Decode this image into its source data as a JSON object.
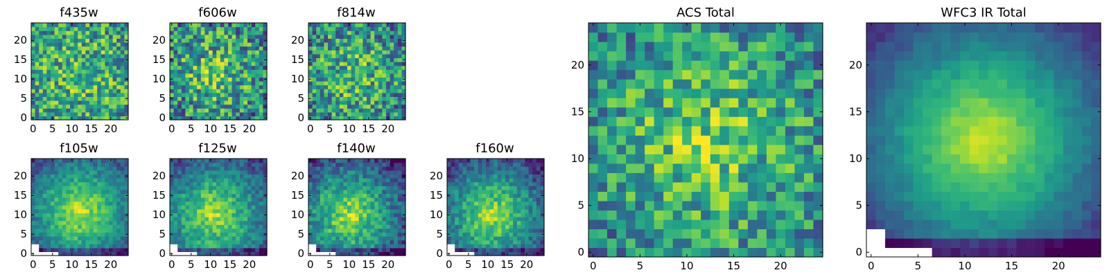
{
  "chart_data": [
    {
      "type": "heatmap",
      "title": "f435w",
      "shape": [
        25,
        25
      ],
      "xlim": [
        0,
        24
      ],
      "ylim": [
        0,
        24
      ],
      "xticks": [
        0,
        5,
        10,
        15,
        20
      ],
      "yticks": [
        0,
        5,
        10,
        15,
        20
      ],
      "value_range": [
        0,
        1
      ],
      "center": [
        12,
        12
      ],
      "peak": 0.68,
      "falloff": 0.1,
      "noise": 0.33,
      "mask": "none"
    },
    {
      "type": "heatmap",
      "title": "f606w",
      "shape": [
        25,
        25
      ],
      "xlim": [
        0,
        24
      ],
      "ylim": [
        0,
        24
      ],
      "xticks": [
        0,
        5,
        10,
        15,
        20
      ],
      "yticks": [
        0,
        5,
        10,
        15,
        20
      ],
      "value_range": [
        0,
        1
      ],
      "center": [
        11,
        12
      ],
      "peak": 0.72,
      "falloff": 0.22,
      "noise": 0.36,
      "mask": "none"
    },
    {
      "type": "heatmap",
      "title": "f814w",
      "shape": [
        25,
        25
      ],
      "xlim": [
        0,
        24
      ],
      "ylim": [
        0,
        24
      ],
      "xticks": [
        0,
        5,
        10,
        15,
        20
      ],
      "yticks": [
        0,
        5,
        10,
        15,
        20
      ],
      "value_range": [
        0,
        1
      ],
      "center": [
        11,
        11
      ],
      "peak": 0.72,
      "falloff": 0.22,
      "noise": 0.34,
      "mask": "none"
    },
    {
      "type": "heatmap",
      "title": "f105w",
      "shape": [
        25,
        25
      ],
      "xlim": [
        0,
        24
      ],
      "ylim": [
        0,
        24
      ],
      "xticks": [
        0,
        5,
        10,
        15,
        20
      ],
      "yticks": [
        0,
        5,
        10,
        15,
        20
      ],
      "value_range": [
        0,
        1
      ],
      "center": [
        12,
        11
      ],
      "peak": 0.93,
      "falloff": 0.5,
      "noise": 0.13,
      "mask": "lower-left"
    },
    {
      "type": "heatmap",
      "title": "f125w",
      "shape": [
        25,
        25
      ],
      "xlim": [
        0,
        24
      ],
      "ylim": [
        0,
        24
      ],
      "xticks": [
        0,
        5,
        10,
        15,
        20
      ],
      "yticks": [
        0,
        5,
        10,
        15,
        20
      ],
      "value_range": [
        0,
        1
      ],
      "center": [
        11,
        10
      ],
      "peak": 0.9,
      "falloff": 0.48,
      "noise": 0.15,
      "mask": "lower-left"
    },
    {
      "type": "heatmap",
      "title": "f140w",
      "shape": [
        25,
        25
      ],
      "xlim": [
        0,
        24
      ],
      "ylim": [
        0,
        24
      ],
      "xticks": [
        0,
        5,
        10,
        15,
        20
      ],
      "yticks": [
        0,
        5,
        10,
        15,
        20
      ],
      "value_range": [
        0,
        1
      ],
      "center": [
        10,
        10
      ],
      "peak": 0.9,
      "falloff": 0.52,
      "noise": 0.18,
      "mask": "lower-left"
    },
    {
      "type": "heatmap",
      "title": "f160w",
      "shape": [
        25,
        25
      ],
      "xlim": [
        0,
        24
      ],
      "ylim": [
        0,
        24
      ],
      "xticks": [
        0,
        5,
        10,
        15,
        20
      ],
      "yticks": [
        0,
        5,
        10,
        15,
        20
      ],
      "value_range": [
        0,
        1
      ],
      "center": [
        11,
        10
      ],
      "peak": 0.9,
      "falloff": 0.52,
      "noise": 0.16,
      "mask": "lower-left"
    },
    {
      "type": "heatmap",
      "title": "ACS Total",
      "shape": [
        25,
        25
      ],
      "xlim": [
        0,
        24
      ],
      "ylim": [
        0,
        24
      ],
      "xticks": [
        0,
        5,
        10,
        15,
        20
      ],
      "yticks": [
        0,
        5,
        10,
        15,
        20
      ],
      "value_range": [
        0,
        1
      ],
      "center": [
        12,
        12
      ],
      "peak": 0.8,
      "falloff": 0.28,
      "noise": 0.28,
      "mask": "none"
    },
    {
      "type": "heatmap",
      "title": "WFC3 IR Total",
      "shape": [
        25,
        25
      ],
      "xlim": [
        0,
        24
      ],
      "ylim": [
        0,
        24
      ],
      "xticks": [
        0,
        5,
        10,
        15,
        20
      ],
      "yticks": [
        0,
        5,
        10,
        15,
        20
      ],
      "value_range": [
        0,
        1
      ],
      "center": [
        12,
        12
      ],
      "peak": 0.97,
      "falloff": 0.62,
      "noise": 0.05,
      "mask": "lower-left"
    }
  ]
}
